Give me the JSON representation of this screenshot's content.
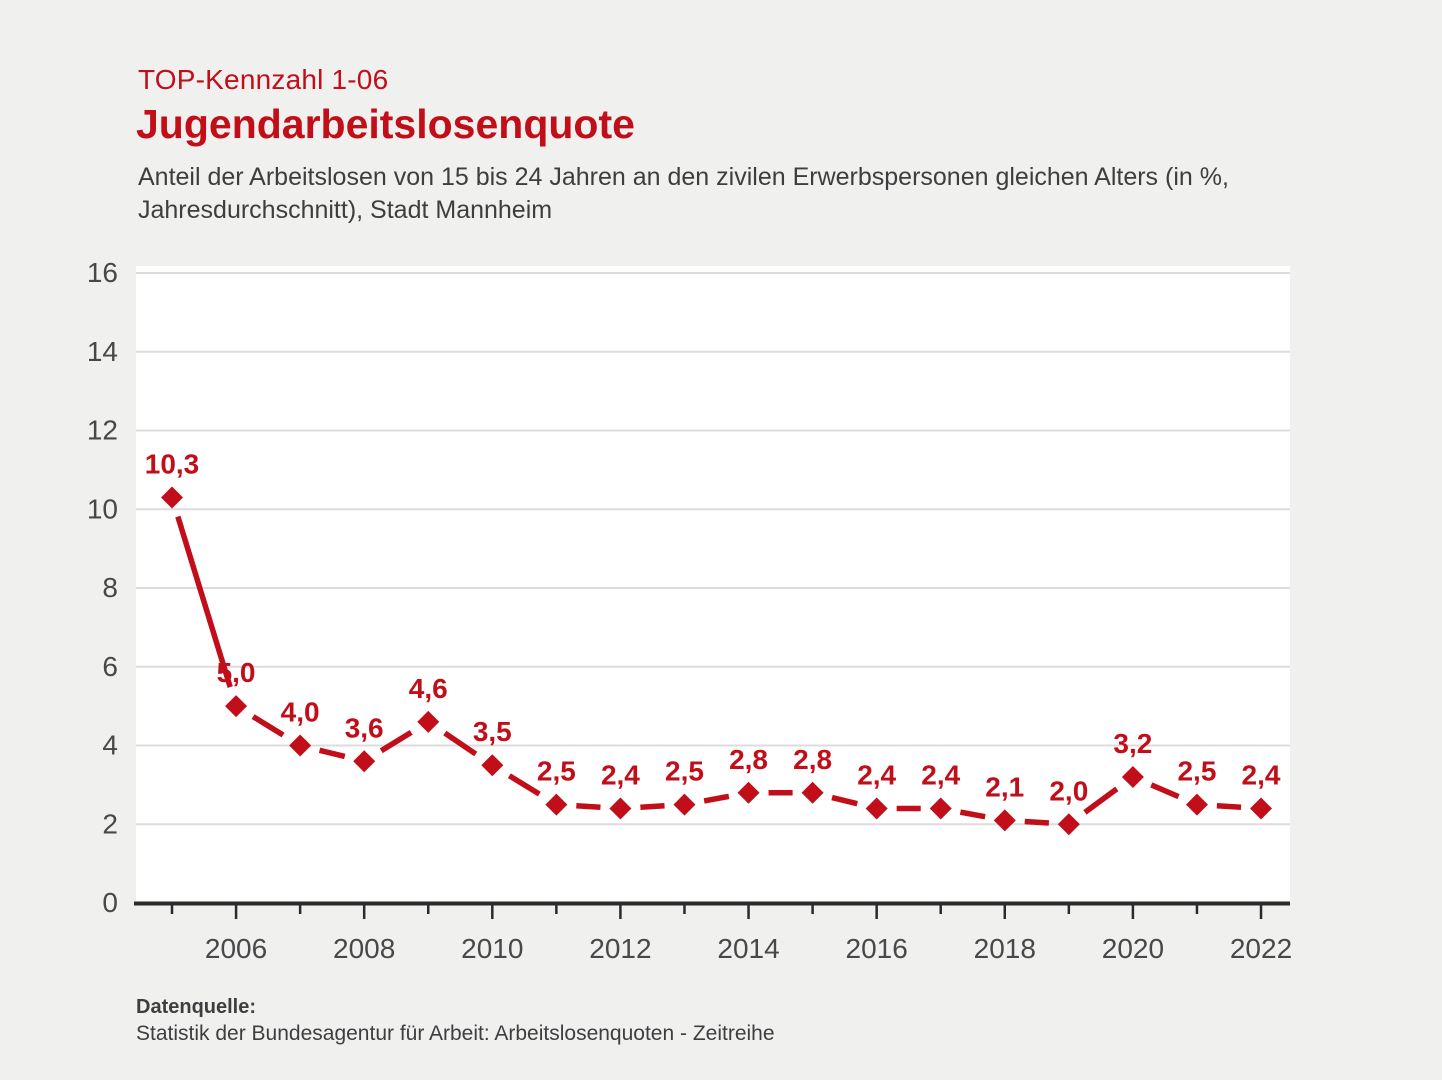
{
  "header": {
    "kicker": "TOP-Kennzahl 1-06",
    "title": "Jugendarbeitslosenquote",
    "subtitle_line1": "Anteil der Arbeitslosen von 15 bis 24 Jahren an den zivilen Erwerbspersonen gleichen Alters (in %,",
    "subtitle_line2": "Jahresdurchschnitt), Stadt Mannheim"
  },
  "footer": {
    "source_label": "Datenquelle:",
    "source_text": "Statistik der Bundesagentur für Arbeit: Arbeitslosenquoten - Zeitreihe"
  },
  "colors": {
    "accent_red": "#c20e19",
    "page_background": "#f0f0ef",
    "plot_background": "#ffffff",
    "grid_line": "#dcdcdc",
    "axis_line": "#2b2b2b",
    "tick_label": "#48484a",
    "body_text": "#3e3e40"
  },
  "chart_data": {
    "type": "line",
    "title": "Jugendarbeitslosenquote",
    "xlabel": "",
    "ylabel": "",
    "x": [
      2005,
      2006,
      2007,
      2008,
      2009,
      2010,
      2011,
      2012,
      2013,
      2014,
      2015,
      2016,
      2017,
      2018,
      2019,
      2020,
      2021,
      2022
    ],
    "values": [
      10.3,
      5.0,
      4.0,
      3.6,
      4.6,
      3.5,
      2.5,
      2.4,
      2.5,
      2.8,
      2.8,
      2.4,
      2.4,
      2.1,
      2.0,
      3.2,
      2.5,
      2.4
    ],
    "point_labels": [
      "10,3",
      "5,0",
      "4,0",
      "3,6",
      "4,6",
      "3,5",
      "2,5",
      "2,4",
      "2,5",
      "2,8",
      "2,8",
      "2,4",
      "2,4",
      "2,1",
      "2,0",
      "3,2",
      "2,5",
      "2,4"
    ],
    "ylim": [
      0,
      16
    ],
    "yticks": [
      0,
      2,
      4,
      6,
      8,
      10,
      12,
      14,
      16
    ],
    "xticks_minor": [
      2005,
      2007,
      2009,
      2011,
      2013,
      2015,
      2017,
      2019,
      2021
    ],
    "xticks_labeled": [
      2006,
      2008,
      2010,
      2012,
      2014,
      2016,
      2018,
      2020,
      2022
    ],
    "grid": true,
    "legend_position": "none",
    "marker": "diamond",
    "series_color": "#c20e19",
    "unit": "%"
  }
}
